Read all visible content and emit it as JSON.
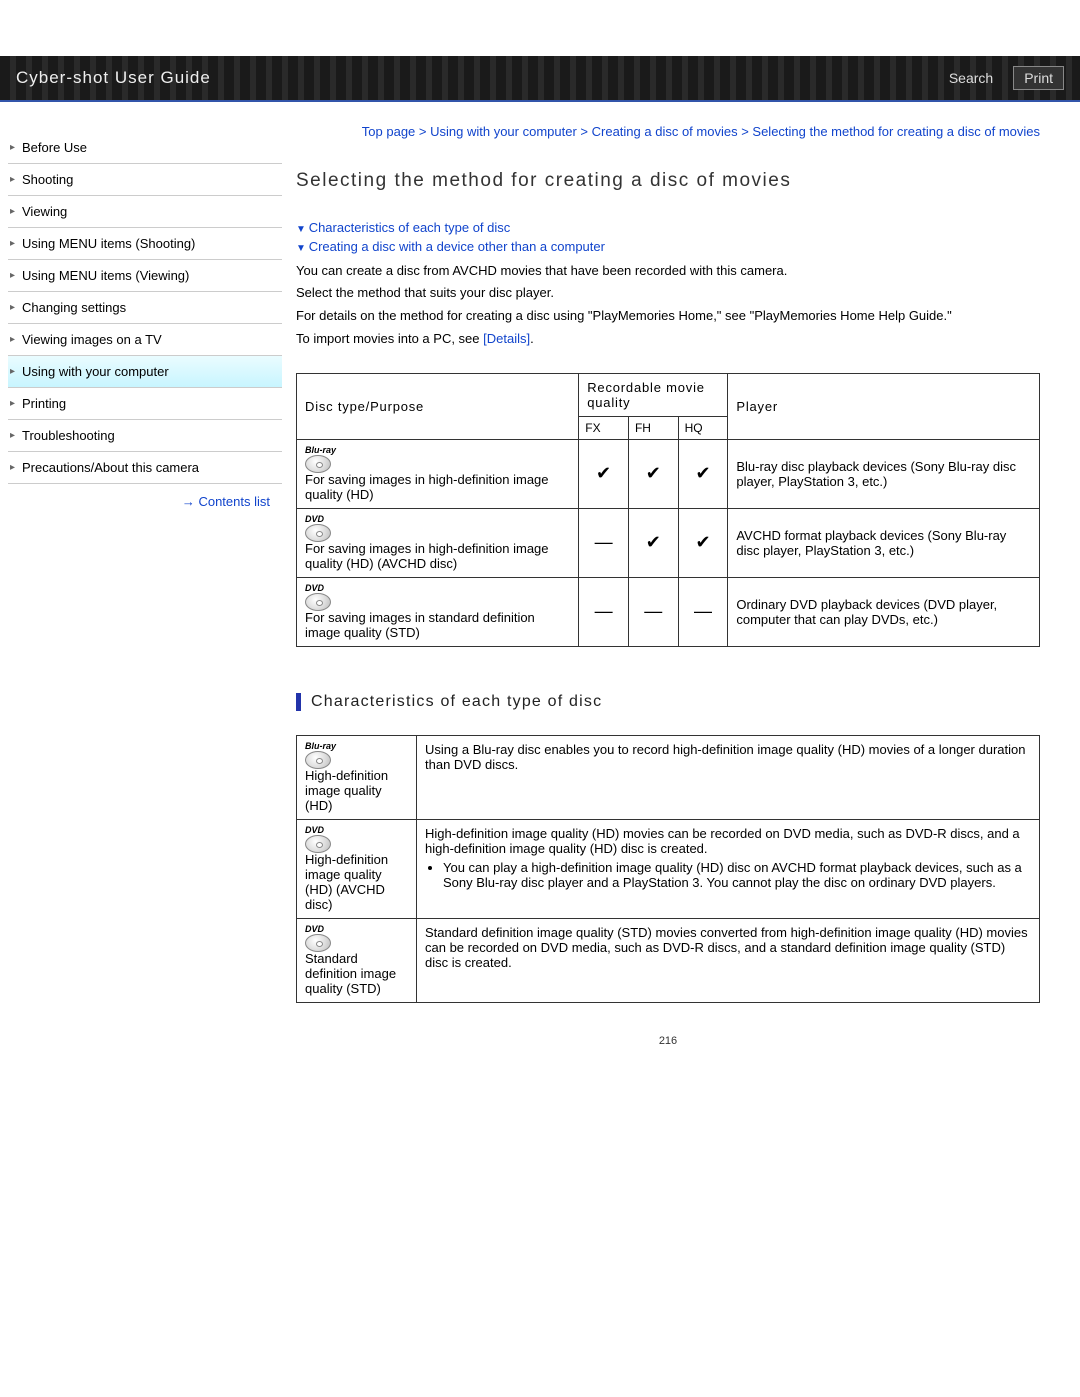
{
  "header": {
    "title": "Cyber-shot User Guide",
    "search_label": "Search",
    "print_label": "Print"
  },
  "sidebar": {
    "items": [
      {
        "label": "Before Use"
      },
      {
        "label": "Shooting"
      },
      {
        "label": "Viewing"
      },
      {
        "label": "Using MENU items (Shooting)"
      },
      {
        "label": "Using MENU items (Viewing)"
      },
      {
        "label": "Changing settings"
      },
      {
        "label": "Viewing images on a TV"
      },
      {
        "label": "Using with your computer"
      },
      {
        "label": "Printing"
      },
      {
        "label": "Troubleshooting"
      },
      {
        "label": "Precautions/About this camera"
      }
    ],
    "active_index": 7,
    "contents_list_label": "Contents list"
  },
  "breadcrumb": {
    "parts": [
      "Top page",
      "Using with your computer",
      "Creating a disc of movies",
      "Selecting the method for creating a disc of movies"
    ],
    "sep": " > "
  },
  "page": {
    "title": "Selecting the method for creating a disc of movies",
    "anchors": [
      "Characteristics of each type of disc",
      "Creating a disc with a device other than a computer"
    ],
    "intro": [
      "You can create a disc from AVCHD movies that have been recorded with this camera.",
      "Select the method that suits your disc player.",
      "For details on the method for creating a disc using \"PlayMemories Home,\" see \"PlayMemories Home Help Guide.\"",
      "To import movies into a PC, see "
    ],
    "details_label": "[Details]",
    "period": "."
  },
  "table1": {
    "headers": {
      "disc_type": "Disc type/Purpose",
      "quality": "Recordable movie quality",
      "player": "Player",
      "fx": "FX",
      "fh": "FH",
      "hq": "HQ"
    },
    "check": "✔",
    "dash": "—",
    "rows": [
      {
        "icon_label": "Blu-ray",
        "purpose": "For saving images in high-definition image quality (HD)",
        "fx": "✔",
        "fh": "✔",
        "hq": "✔",
        "player": "Blu-ray disc playback devices (Sony Blu-ray disc player, PlayStation 3, etc.)"
      },
      {
        "icon_label": "DVD",
        "purpose": "For saving images in high-definition image quality (HD) (AVCHD disc)",
        "fx": "—",
        "fh": "✔",
        "hq": "✔",
        "player": "AVCHD format playback devices (Sony Blu-ray disc player, PlayStation 3, etc.)"
      },
      {
        "icon_label": "DVD",
        "purpose": "For saving images in standard definition image quality (STD)",
        "fx": "—",
        "fh": "—",
        "hq": "—",
        "player": "Ordinary DVD playback devices (DVD player, computer that can play DVDs, etc.)"
      }
    ]
  },
  "section2": {
    "heading": "Characteristics of each type of disc",
    "rows": [
      {
        "icon_label": "Blu-ray",
        "label": "High-definition image quality (HD)",
        "desc": "Using a Blu-ray disc enables you to record high-definition image quality (HD) movies of a longer duration than DVD discs."
      },
      {
        "icon_label": "DVD",
        "label": "High-definition image quality (HD) (AVCHD disc)",
        "desc": "High-definition image quality (HD) movies can be recorded on DVD media, such as DVD-R discs, and a high-definition image quality (HD) disc is created.",
        "bullet": "You can play a high-definition image quality (HD) disc on AVCHD format playback devices, such as a Sony Blu-ray disc player and a PlayStation 3. You cannot play the disc on ordinary DVD players."
      },
      {
        "icon_label": "DVD",
        "label": "Standard definition image quality (STD)",
        "desc": "Standard definition image quality (STD) movies converted from high-definition image quality (HD) movies can be recorded on DVD media, such as DVD-R discs, and a standard definition image quality (STD) disc is created."
      }
    ]
  },
  "page_number": "216"
}
